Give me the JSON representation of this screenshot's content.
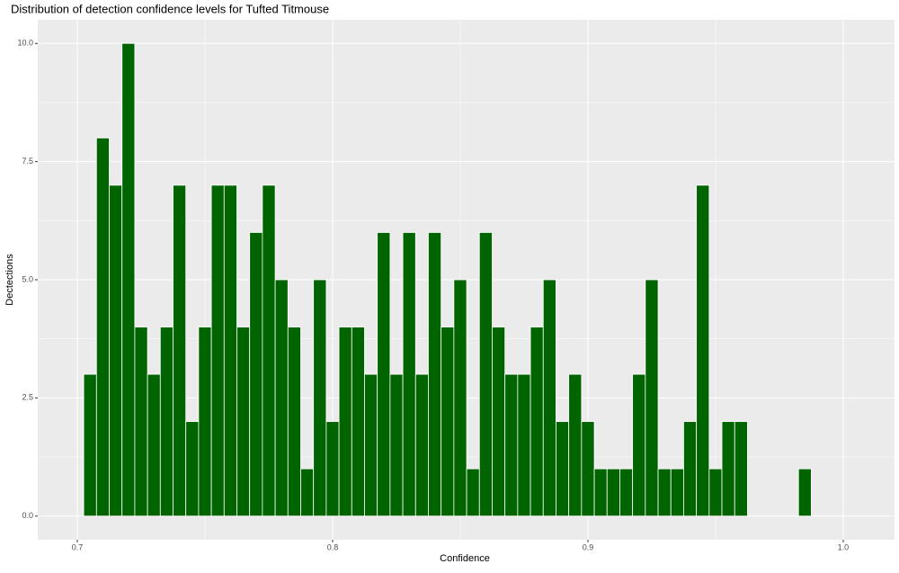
{
  "chart_data": {
    "type": "histogram",
    "title": "Distribution of detection confidence levels for Tufted Titmouse",
    "x_label": "Confidence",
    "y_label": "Dectections",
    "bins": [
      0.7025,
      0.7075,
      0.7125,
      0.7175,
      0.7225,
      0.7275,
      0.7325,
      0.7375,
      0.7425,
      0.7475,
      0.7525,
      0.7575,
      0.7625,
      0.7675,
      0.7725,
      0.7775,
      0.7825,
      0.7875,
      0.7925,
      0.7975,
      0.8025,
      0.8075,
      0.8125,
      0.8175,
      0.8225,
      0.8275,
      0.8325,
      0.8375,
      0.8425,
      0.8475,
      0.8525,
      0.8575,
      0.8625,
      0.8675,
      0.8725,
      0.8775,
      0.8825,
      0.8875,
      0.8925,
      0.8975,
      0.9025,
      0.9075,
      0.9125,
      0.9175,
      0.9225,
      0.9275,
      0.9325,
      0.9375,
      0.9425,
      0.9475,
      0.9525,
      0.9575,
      0.9625,
      0.9675,
      0.9725,
      0.9775,
      0.9825,
      0.9875
    ],
    "values": [
      3,
      8,
      7,
      10,
      4,
      3,
      4,
      7,
      2,
      4,
      7,
      7,
      4,
      6,
      7,
      5,
      4,
      1,
      5,
      2,
      4,
      4,
      3,
      6,
      3,
      6,
      3,
      6,
      4,
      5,
      1,
      6,
      4,
      3,
      3,
      4,
      5,
      2,
      3,
      2,
      1,
      1,
      1,
      3,
      5,
      1,
      1,
      2,
      7,
      1,
      2,
      2,
      0,
      0,
      0,
      0,
      1
    ],
    "color": "#006400",
    "xlim": [
      0.6845,
      1.0201
    ],
    "ylim": [
      -0.5,
      10.5
    ],
    "xticks": [
      0.7,
      0.8,
      0.9,
      {
        "value": 1.0,
        "label": "1.0"
      }
    ],
    "yticks": [
      {
        "value": 0,
        "label": "0.0"
      },
      2.5,
      {
        "value": 5,
        "label": "5.0"
      },
      7.5,
      {
        "value": 10,
        "label": "10.0"
      }
    ],
    "grid": true
  }
}
